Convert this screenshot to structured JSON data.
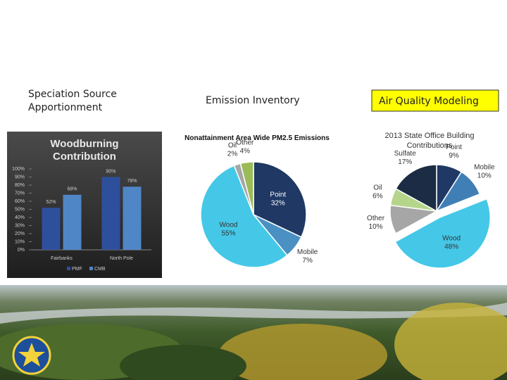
{
  "headings": [
    "Speciation Source Apportionment",
    "Emission Inventory",
    "Air Quality Modeling"
  ],
  "chart_data": [
    {
      "type": "bar",
      "title": "Woodburning Contribution",
      "categories": [
        "Fairbanks",
        "North Pole"
      ],
      "series": [
        {
          "name": "PMF",
          "color": "#2e4f9c",
          "values": [
            52,
            90
          ],
          "value_labels": [
            "52%",
            "90%"
          ]
        },
        {
          "name": "CMB",
          "color": "#4f86c6",
          "values": [
            68,
            78
          ],
          "value_labels": [
            "68%",
            "78%"
          ]
        }
      ],
      "ylim": [
        0,
        100
      ],
      "yticks": [
        {
          "value": 0,
          "label": "0%"
        },
        {
          "value": 10,
          "label": "10%"
        },
        {
          "value": 20,
          "label": "20%"
        },
        {
          "value": 30,
          "label": "30%"
        },
        {
          "value": 40,
          "label": "40%"
        },
        {
          "value": 50,
          "label": "50%"
        },
        {
          "value": 60,
          "label": "60%"
        },
        {
          "value": 70,
          "label": "70%"
        },
        {
          "value": 80,
          "label": "80%"
        },
        {
          "value": 90,
          "label": "90%"
        },
        {
          "value": 100,
          "label": "100%"
        }
      ]
    },
    {
      "type": "pie",
      "title": "Nonattainment Area Wide PM2.5 Emissions",
      "categories": [
        "Point",
        "Mobile",
        "Wood",
        "Oil",
        "Other"
      ],
      "values": [
        32,
        7,
        55,
        2,
        4
      ],
      "value_labels": [
        "32%",
        "7%",
        "55%",
        "2%",
        "4%"
      ],
      "colors": [
        "#1f3864",
        "#4a90c2",
        "#45c8e8",
        "#a6a6a6",
        "#9bbb59"
      ]
    },
    {
      "type": "pie",
      "title": "2013 State Office Building Contributions",
      "categories": [
        "Point",
        "Mobile",
        "Wood",
        "Other",
        "Oil",
        "Sulfate"
      ],
      "values": [
        9,
        10,
        48,
        10,
        6,
        17
      ],
      "value_labels": [
        "9%",
        "10%",
        "48%",
        "10%",
        "6%",
        "17%"
      ],
      "colors": [
        "#1f3864",
        "#3f7fb5",
        "#45c8e8",
        "#a6a6a6",
        "#b5d68a",
        "#1c2c44"
      ],
      "explode": [
        0,
        0,
        1,
        0,
        0,
        0
      ]
    }
  ]
}
